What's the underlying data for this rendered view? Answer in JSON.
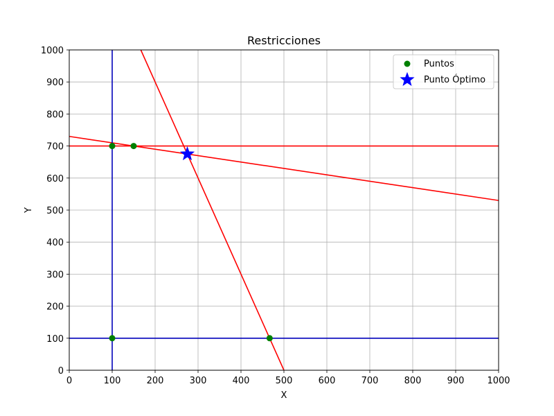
{
  "chart_data": {
    "type": "scatter",
    "title": "Restricciones",
    "xlabel": "X",
    "ylabel": "Y",
    "xlim": [
      0,
      1000
    ],
    "ylim": [
      0,
      1000
    ],
    "xticks": [
      0,
      100,
      200,
      300,
      400,
      500,
      600,
      700,
      800,
      900,
      1000
    ],
    "yticks": [
      0,
      100,
      200,
      300,
      400,
      500,
      600,
      700,
      800,
      900,
      1000
    ],
    "grid": true,
    "legend_position": "top-right",
    "lines": [
      {
        "color": "#ff0000",
        "points": [
          [
            0,
            700
          ],
          [
            1000,
            700
          ]
        ]
      },
      {
        "color": "#ff0000",
        "points": [
          [
            0,
            730
          ],
          [
            1000,
            530
          ]
        ]
      },
      {
        "color": "#ff0000",
        "points": [
          [
            166.7,
            1000
          ],
          [
            500,
            0
          ]
        ]
      },
      {
        "color": "#0000bb",
        "points": [
          [
            100,
            0
          ],
          [
            100,
            1000
          ]
        ]
      },
      {
        "color": "#0000bb",
        "points": [
          [
            0,
            100
          ],
          [
            1000,
            100
          ]
        ]
      }
    ],
    "series": [
      {
        "name": "Puntos",
        "marker": "circle",
        "color": "#008000",
        "points": [
          [
            100,
            700
          ],
          [
            150,
            700
          ],
          [
            100,
            100
          ],
          [
            466.7,
            100
          ]
        ]
      },
      {
        "name": "Punto Óptimo",
        "marker": "star",
        "color": "#0000ff",
        "points": [
          [
            275,
            675
          ]
        ]
      }
    ]
  }
}
